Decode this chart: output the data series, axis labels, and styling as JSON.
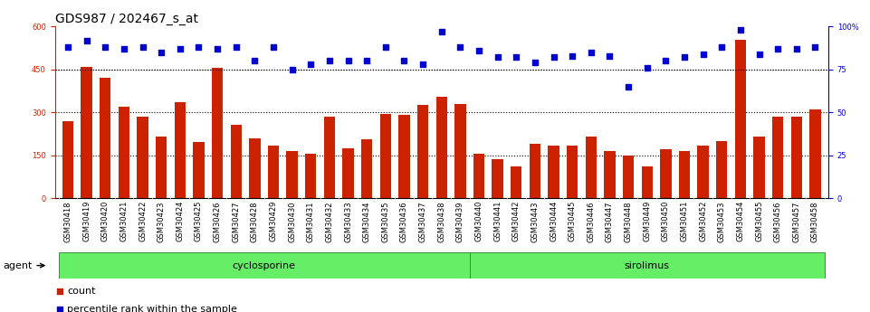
{
  "title": "GDS987 / 202467_s_at",
  "samples": [
    "GSM30418",
    "GSM30419",
    "GSM30420",
    "GSM30421",
    "GSM30422",
    "GSM30423",
    "GSM30424",
    "GSM30425",
    "GSM30426",
    "GSM30427",
    "GSM30428",
    "GSM30429",
    "GSM30430",
    "GSM30431",
    "GSM30432",
    "GSM30433",
    "GSM30434",
    "GSM30435",
    "GSM30436",
    "GSM30437",
    "GSM30438",
    "GSM30439",
    "GSM30440",
    "GSM30441",
    "GSM30442",
    "GSM30443",
    "GSM30444",
    "GSM30445",
    "GSM30446",
    "GSM30447",
    "GSM30448",
    "GSM30449",
    "GSM30450",
    "GSM30451",
    "GSM30452",
    "GSM30453",
    "GSM30454",
    "GSM30455",
    "GSM30456",
    "GSM30457",
    "GSM30458"
  ],
  "counts": [
    270,
    460,
    420,
    320,
    285,
    215,
    335,
    195,
    455,
    255,
    210,
    185,
    165,
    155,
    285,
    175,
    205,
    295,
    290,
    325,
    355,
    330,
    155,
    135,
    110,
    190,
    185,
    185,
    215,
    165,
    150,
    110,
    170,
    165,
    185,
    200,
    555,
    215,
    285,
    285,
    310
  ],
  "percentile": [
    88,
    92,
    88,
    87,
    88,
    85,
    87,
    88,
    87,
    88,
    80,
    88,
    75,
    78,
    80,
    80,
    80,
    88,
    80,
    78,
    97,
    88,
    86,
    82,
    82,
    79,
    82,
    83,
    85,
    83,
    65,
    76,
    80,
    82,
    84,
    88,
    98,
    84,
    87,
    87,
    88
  ],
  "n_cyclosporine": 22,
  "group_color": "#66EE66",
  "group_edge_color": "#448844",
  "bar_color": "#CC2200",
  "dot_color": "#0000CC",
  "left_ylim": [
    0,
    600
  ],
  "left_yticks": [
    0,
    150,
    300,
    450,
    600
  ],
  "right_ylim": [
    0,
    100
  ],
  "right_yticks": [
    0,
    25,
    50,
    75,
    100
  ],
  "right_yticklabels": [
    "0",
    "25",
    "50",
    "75",
    "100%"
  ],
  "hgrid_values": [
    150,
    300,
    450
  ],
  "title_fontsize": 10,
  "tick_fontsize": 6,
  "label_fontsize": 8,
  "background_color": "#ffffff",
  "tick_bg_color": "#dddddd"
}
